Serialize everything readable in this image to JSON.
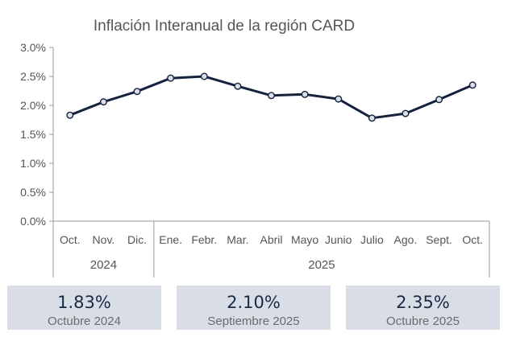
{
  "chart_data": {
    "type": "line",
    "title": "Inflación Interanual de la región CARD",
    "y_ticks": [
      "3.0%",
      "2.5%",
      "2.0%",
      "1.5%",
      "1.0%",
      "0.5%",
      "0.0%"
    ],
    "ylim": [
      0,
      3.0
    ],
    "categories": [
      "Oct.",
      "Nov.",
      "Dic.",
      "Ene.",
      "Febr.",
      "Mar.",
      "Abril",
      "Mayo",
      "Junio",
      "Julio",
      "Ago.",
      "Sept.",
      "Oct."
    ],
    "year_groups": [
      {
        "label": "2024",
        "count": 3
      },
      {
        "label": "2025",
        "count": 10
      }
    ],
    "series": [
      {
        "values": [
          1.83,
          2.06,
          2.24,
          2.47,
          2.5,
          2.33,
          2.17,
          2.19,
          2.11,
          1.78,
          1.86,
          2.1,
          2.35
        ]
      }
    ],
    "grid": false,
    "colors": {
      "line": "#14223d",
      "marker_fill": "#d9dee8",
      "axis": "#9a9a9a"
    }
  },
  "stats": [
    {
      "value": "1.83%",
      "label": "Octubre 2024"
    },
    {
      "value": "2.10%",
      "label": "Septiembre 2025"
    },
    {
      "value": "2.35%",
      "label": "Octubre 2025"
    }
  ]
}
